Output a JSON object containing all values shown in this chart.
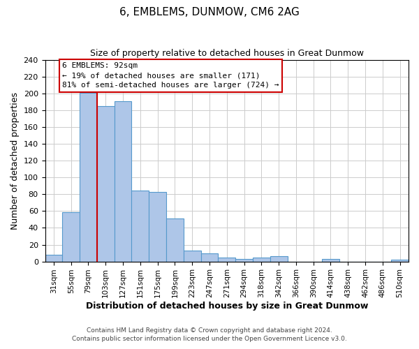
{
  "title": "6, EMBLEMS, DUNMOW, CM6 2AG",
  "subtitle": "Size of property relative to detached houses in Great Dunmow",
  "xlabel": "Distribution of detached houses by size in Great Dunmow",
  "ylabel": "Number of detached properties",
  "bar_labels": [
    "31sqm",
    "55sqm",
    "79sqm",
    "103sqm",
    "127sqm",
    "151sqm",
    "175sqm",
    "199sqm",
    "223sqm",
    "247sqm",
    "271sqm",
    "294sqm",
    "318sqm",
    "342sqm",
    "366sqm",
    "390sqm",
    "414sqm",
    "438sqm",
    "462sqm",
    "486sqm",
    "510sqm"
  ],
  "bar_values": [
    8,
    59,
    201,
    185,
    191,
    84,
    83,
    51,
    13,
    10,
    5,
    3,
    5,
    6,
    0,
    0,
    3,
    0,
    0,
    0,
    2
  ],
  "bar_color": "#aec6e8",
  "bar_edge_color": "#5599cc",
  "ylim": [
    0,
    240
  ],
  "yticks": [
    0,
    20,
    40,
    60,
    80,
    100,
    120,
    140,
    160,
    180,
    200,
    220,
    240
  ],
  "vline_color": "#cc0000",
  "annotation_text_line1": "6 EMBLEMS: 92sqm",
  "annotation_text_line2": "← 19% of detached houses are smaller (171)",
  "annotation_text_line3": "81% of semi-detached houses are larger (724) →",
  "footer_line1": "Contains HM Land Registry data © Crown copyright and database right 2024.",
  "footer_line2": "Contains public sector information licensed under the Open Government Licence v3.0.",
  "background_color": "#ffffff",
  "grid_color": "#cccccc"
}
